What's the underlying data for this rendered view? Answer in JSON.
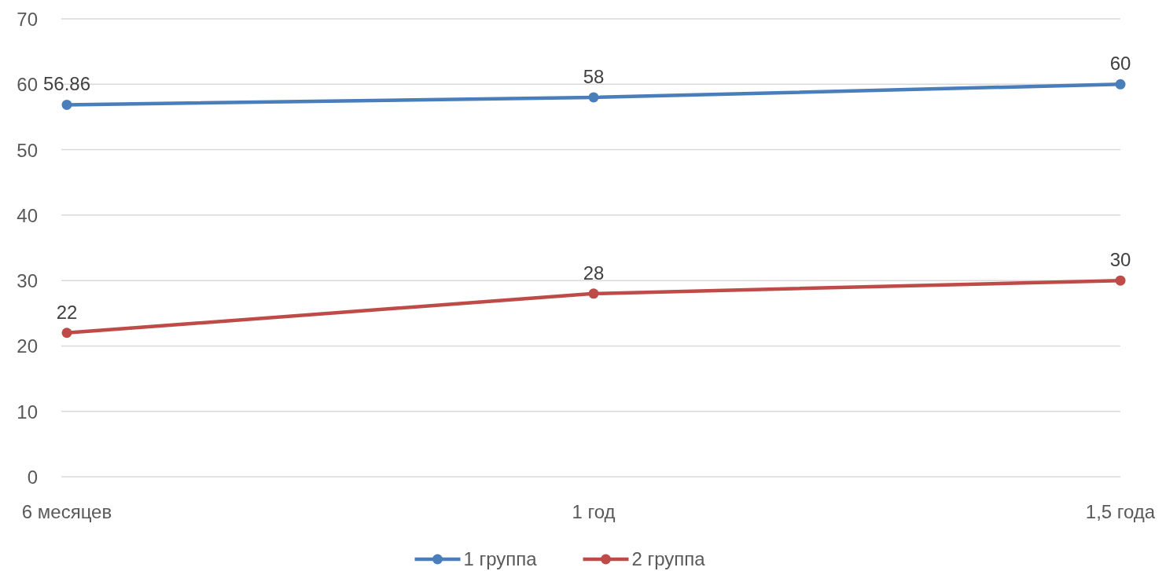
{
  "chart_data": {
    "type": "line",
    "categories": [
      "6 месяцев",
      "1 год",
      "1,5 года"
    ],
    "series": [
      {
        "name": "1 группа",
        "color": "#4a7ebb",
        "values": [
          56.86,
          58,
          60
        ]
      },
      {
        "name": "2 группа",
        "color": "#be4b48",
        "values": [
          22,
          28,
          30
        ]
      }
    ],
    "ylim": [
      0,
      70
    ],
    "yticks": [
      0,
      10,
      20,
      30,
      40,
      50,
      60,
      70
    ],
    "grid": "y",
    "legend": "bottom",
    "marker": "circle",
    "data_labels": true
  }
}
